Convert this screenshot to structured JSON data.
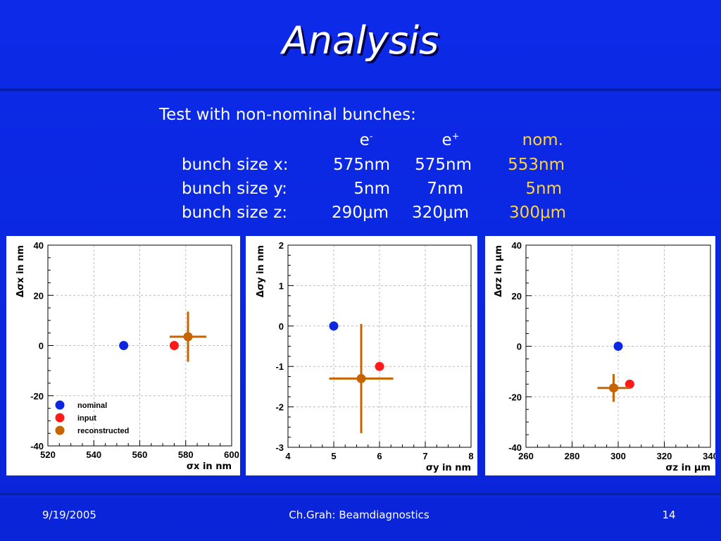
{
  "slide": {
    "title": "Analysis",
    "intro": "Test with non-nominal bunches:",
    "table": {
      "headers": [
        "e-",
        "e+",
        "nom."
      ],
      "rows": [
        {
          "label": "bunch size x:",
          "e_minus": "575nm",
          "e_plus": "575nm",
          "nom": "553nm"
        },
        {
          "label": "bunch size y:",
          "e_minus": "5nm",
          "e_plus": "7nm",
          "nom": "5nm"
        },
        {
          "label": "bunch size z:",
          "e_minus": "290μm",
          "e_plus": "320μm",
          "nom": "300μm"
        }
      ]
    },
    "footer": {
      "date": "9/19/2005",
      "center": "Ch.Grah: Beamdiagnostics",
      "page": "14"
    },
    "colors": {
      "background": "#0a26e0",
      "nominal": "#0a26e0",
      "input": "#ff1a1a",
      "reconstructed": "#c86400",
      "highlight": "#ffd23a"
    }
  },
  "chart_data": [
    {
      "type": "scatter",
      "xlabel": "σx in nm",
      "ylabel": "Δσx in nm",
      "xlim": [
        520,
        600
      ],
      "ylim": [
        -40,
        40
      ],
      "xticks": [
        520,
        540,
        560,
        580,
        600
      ],
      "yticks": [
        -40,
        -20,
        0,
        20,
        40
      ],
      "grid": true,
      "legend": {
        "placement": "bottom-left",
        "entries": [
          "nominal",
          "input",
          "reconstructed"
        ]
      },
      "series": [
        {
          "name": "nominal",
          "points": [
            {
              "x": 553,
              "y": 0
            }
          ]
        },
        {
          "name": "input",
          "points": [
            {
              "x": 575,
              "y": 0
            }
          ]
        },
        {
          "name": "reconstructed",
          "points": [
            {
              "x": 581,
              "y": 3.5,
              "xerr": 8,
              "yerr": 10
            }
          ]
        }
      ]
    },
    {
      "type": "scatter",
      "xlabel": "σy in nm",
      "ylabel": "Δσy in nm",
      "xlim": [
        4,
        8
      ],
      "ylim": [
        -3,
        2
      ],
      "xticks": [
        4,
        5,
        6,
        7,
        8
      ],
      "yticks": [
        -3,
        -2,
        -1,
        0,
        1,
        2
      ],
      "grid": true,
      "series": [
        {
          "name": "nominal",
          "points": [
            {
              "x": 5,
              "y": 0
            }
          ]
        },
        {
          "name": "input",
          "points": [
            {
              "x": 6,
              "y": -1
            }
          ]
        },
        {
          "name": "reconstructed",
          "points": [
            {
              "x": 5.6,
              "y": -1.3,
              "xerr": 0.7,
              "yerr": 1.35
            }
          ]
        }
      ]
    },
    {
      "type": "scatter",
      "xlabel": "σz in μm",
      "ylabel": "Δσz in μm",
      "xlim": [
        260,
        340
      ],
      "ylim": [
        -40,
        40
      ],
      "xticks": [
        260,
        280,
        300,
        320,
        340
      ],
      "yticks": [
        -40,
        -20,
        0,
        20,
        40
      ],
      "grid": true,
      "series": [
        {
          "name": "nominal",
          "points": [
            {
              "x": 300,
              "y": 0
            }
          ]
        },
        {
          "name": "input",
          "points": [
            {
              "x": 305,
              "y": -15
            }
          ]
        },
        {
          "name": "reconstructed",
          "points": [
            {
              "x": 298,
              "y": -16.5,
              "xerr": 7,
              "yerr": 5.5
            }
          ]
        }
      ]
    }
  ]
}
